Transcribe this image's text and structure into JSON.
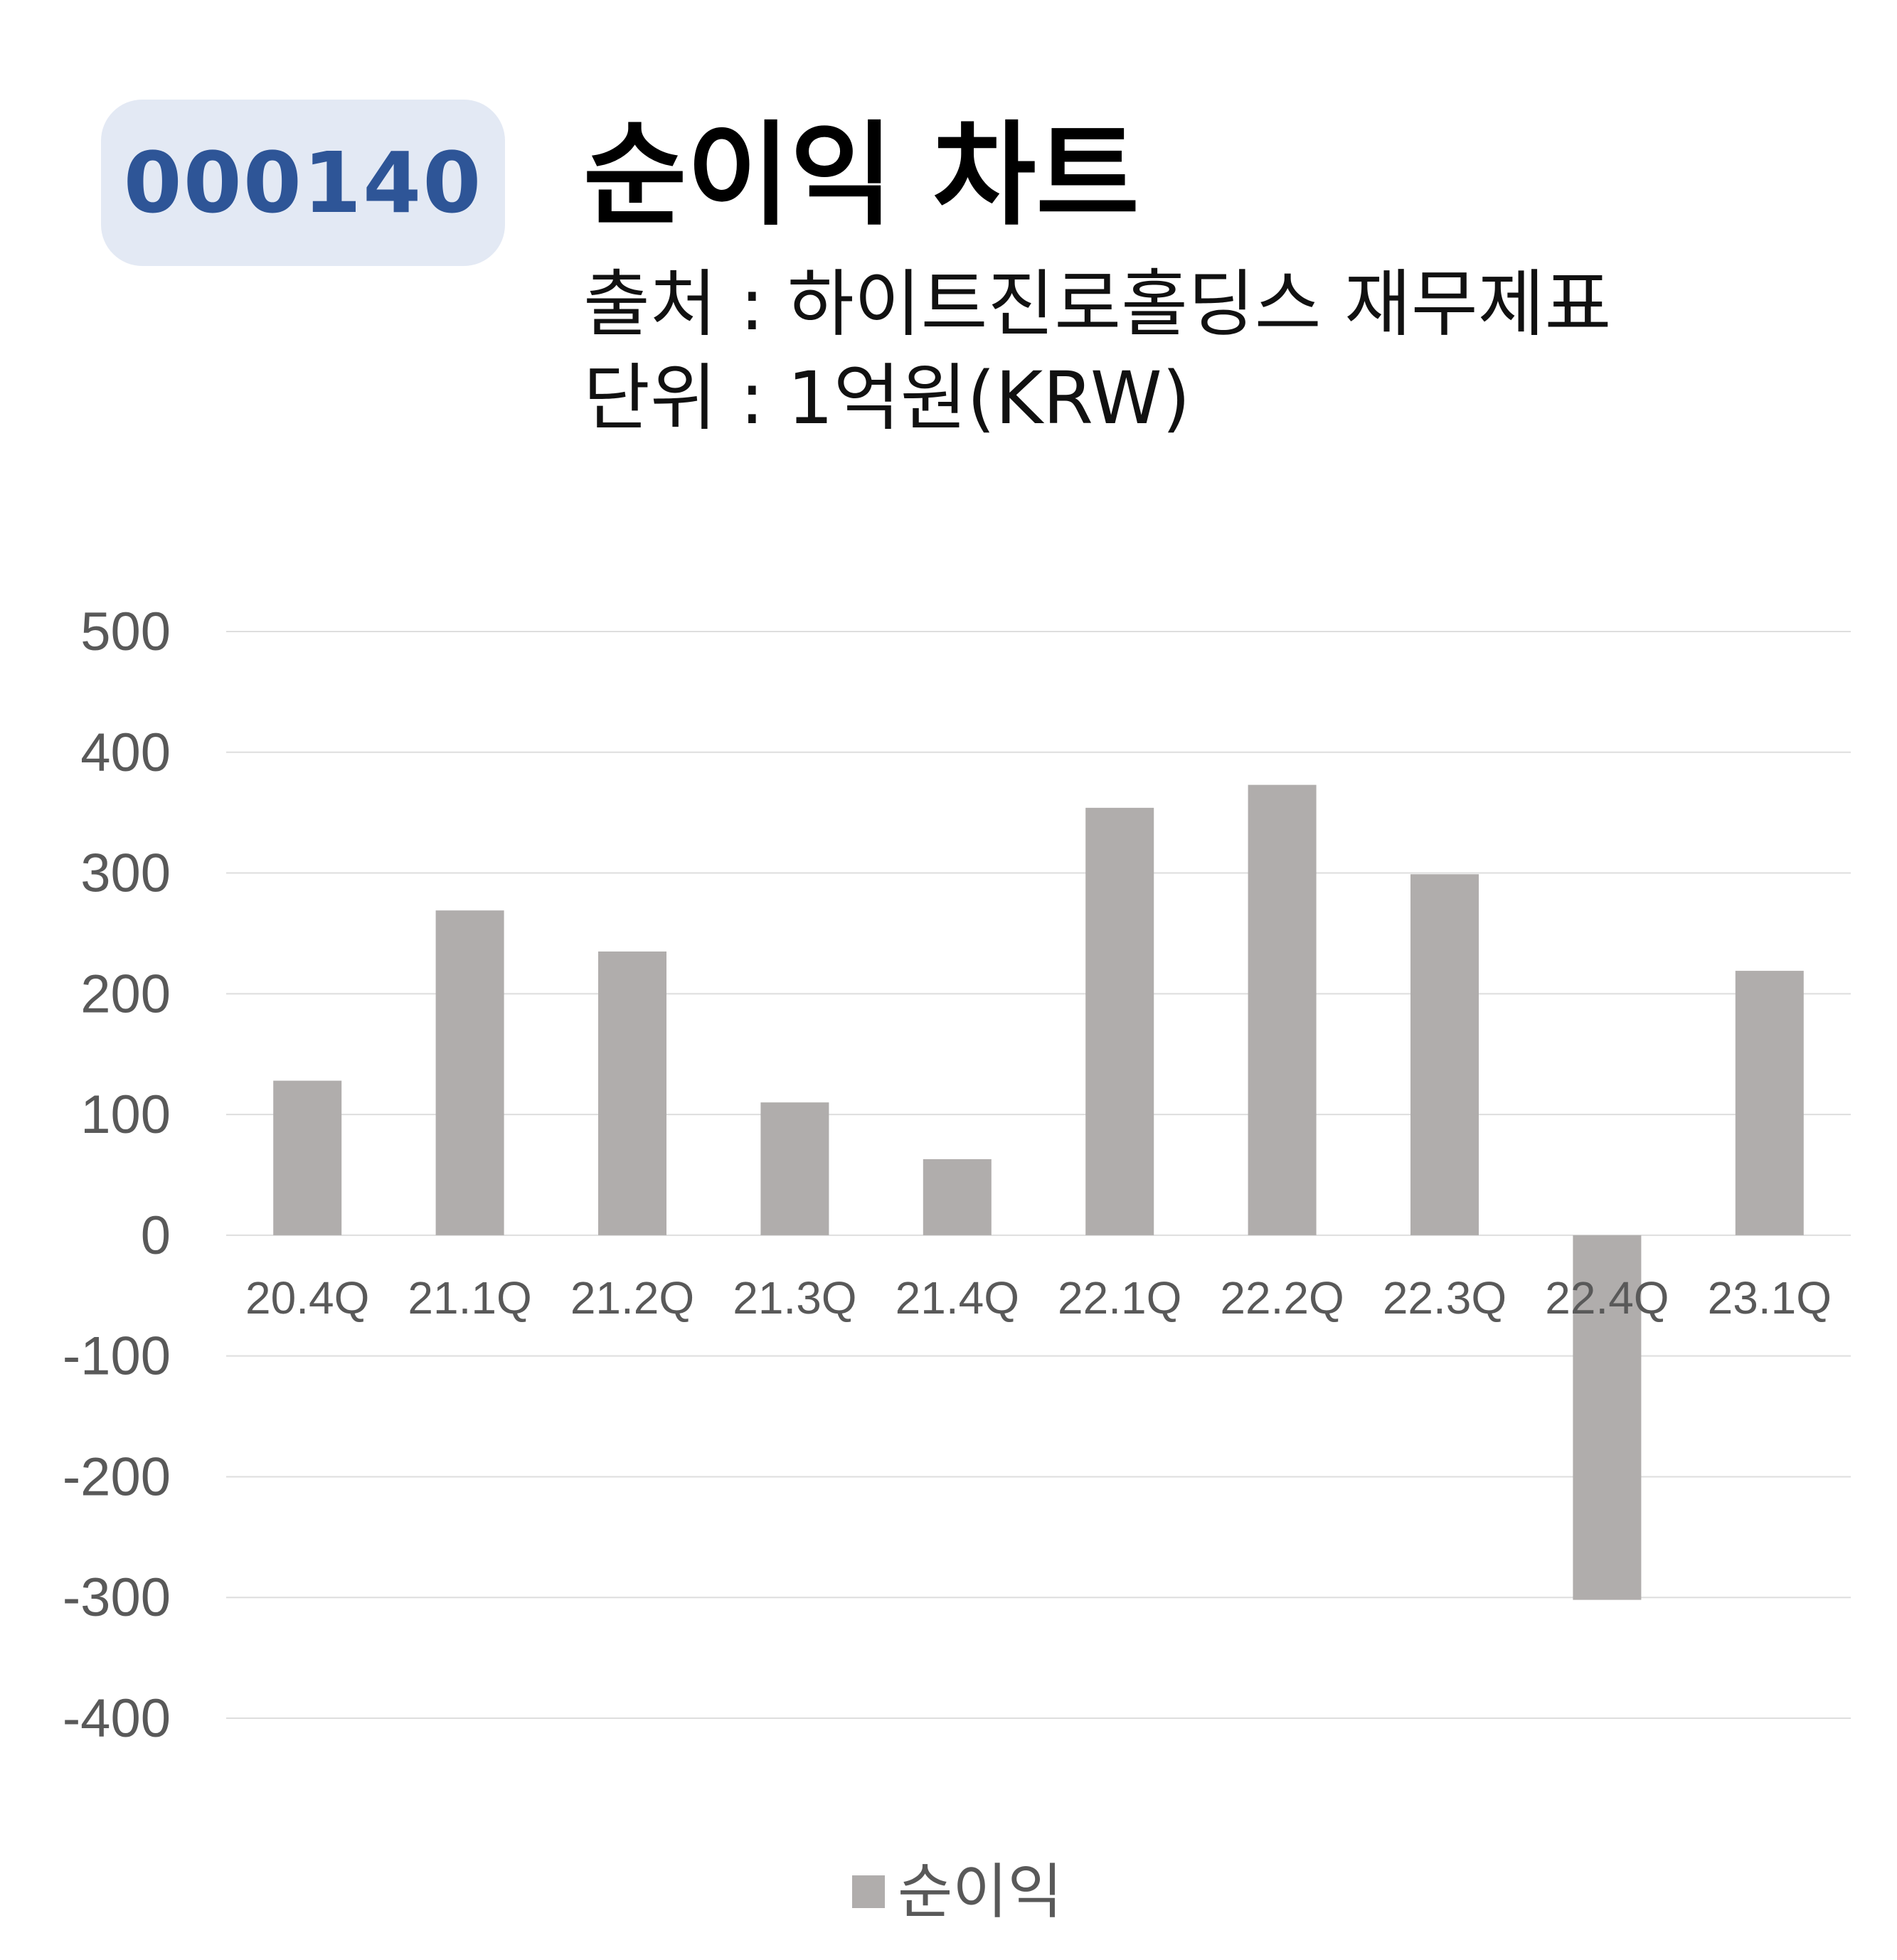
{
  "header": {
    "code": "000140",
    "title": "순이익 차트",
    "source": "출처 : 하이트진로홀딩스 재무제표",
    "unit": "단위 : 1억원(KRW)"
  },
  "colors": {
    "bar": "#b0adac",
    "badge_bg": "#e3e9f4",
    "badge_text": "#2e5597",
    "grid": "#dedede"
  },
  "chart_data": {
    "type": "bar",
    "title": "순이익 차트",
    "categories": [
      "20.4Q",
      "21.1Q",
      "21.2Q",
      "21.3Q",
      "21.4Q",
      "22.1Q",
      "22.2Q",
      "22.3Q",
      "22.4Q",
      "23.1Q"
    ],
    "series": [
      {
        "name": "순이익",
        "values": [
          128,
          269,
          235,
          110,
          63,
          354,
          373,
          299,
          -302,
          219
        ]
      }
    ],
    "ylim": [
      -400,
      500
    ],
    "yticks": [
      500,
      400,
      300,
      200,
      100,
      0,
      -100,
      -200,
      -300,
      -400
    ],
    "grid": true,
    "legend": "bottom-center",
    "xlabel": "",
    "ylabel": ""
  }
}
